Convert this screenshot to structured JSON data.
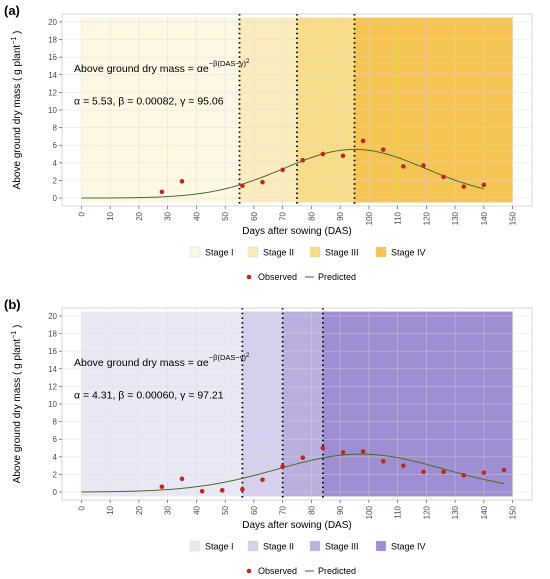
{
  "chart_data": [
    {
      "type": "scatter",
      "panel_label": "(a)",
      "xlabel": "Days after sowing (DAS)",
      "ylabel": "Above ground dry mass ( g plant",
      "ylabel_sup": "−1",
      "ylabel_close": " )",
      "xlim": [
        0,
        150
      ],
      "ylim": [
        0,
        20
      ],
      "x_ticks": [
        0,
        10,
        20,
        30,
        40,
        50,
        60,
        70,
        80,
        90,
        100,
        110,
        120,
        130,
        140,
        150
      ],
      "y_ticks": [
        0,
        2,
        4,
        6,
        8,
        10,
        12,
        14,
        16,
        18,
        20
      ],
      "grid": true,
      "equation": {
        "lhs": "Above ground dry mass = αe",
        "exponent": "−β(DAS−γ)",
        "exponent_sup": "2",
        "params": "α = 5.53, β =  0.00082, γ = 95.06"
      },
      "model": {
        "alpha": 5.53,
        "beta": 0.00082,
        "gamma": 95.06
      },
      "stages": [
        {
          "name": "Stage I",
          "from": 0,
          "to": 55,
          "color": "#fdf7e3"
        },
        {
          "name": "Stage II",
          "from": 55,
          "to": 75,
          "color": "#fbecc0"
        },
        {
          "name": "Stage III",
          "from": 75,
          "to": 95,
          "color": "#f8dc8a"
        },
        {
          "name": "Stage IV",
          "from": 95,
          "to": 150,
          "color": "#f5c553"
        }
      ],
      "stage_boundaries": [
        55,
        75,
        95
      ],
      "observed": {
        "name": "Observed",
        "color": "#c0271f",
        "x": [
          28,
          35,
          56,
          63,
          70,
          77,
          84,
          91,
          98,
          105,
          112,
          119,
          126,
          133,
          140
        ],
        "y": [
          0.7,
          1.9,
          1.4,
          1.8,
          3.2,
          4.3,
          5.0,
          4.8,
          6.5,
          5.5,
          3.6,
          3.7,
          2.4,
          1.3,
          1.5
        ]
      },
      "predicted": {
        "name": "Predicted",
        "color": "#4a6b2f",
        "x_range": [
          0,
          140
        ]
      },
      "legend": {
        "stage_labels": [
          "Stage I",
          "Stage II",
          "Stage III",
          "Stage IV"
        ],
        "observed_label": "Observed",
        "predicted_label": "Predicted"
      }
    },
    {
      "type": "scatter",
      "panel_label": "(b)",
      "xlabel": "Days after sowing (DAS)",
      "ylabel": "Above ground dry mass ( g plant",
      "ylabel_sup": "−1",
      "ylabel_close": " )",
      "xlim": [
        0,
        150
      ],
      "ylim": [
        0,
        20
      ],
      "x_ticks": [
        0,
        10,
        20,
        30,
        40,
        50,
        60,
        70,
        80,
        90,
        100,
        110,
        120,
        130,
        140,
        150
      ],
      "y_ticks": [
        0,
        2,
        4,
        6,
        8,
        10,
        12,
        14,
        16,
        18,
        20
      ],
      "grid": true,
      "equation": {
        "lhs": "Above ground dry mass = αe",
        "exponent": "−β(DAS−γ)",
        "exponent_sup": "2",
        "params": "α = 4.31, β =  0.00060, γ = 97.21"
      },
      "model": {
        "alpha": 4.31,
        "beta": 0.0006,
        "gamma": 97.21
      },
      "stages": [
        {
          "name": "Stage I",
          "from": 0,
          "to": 56,
          "color": "#ebe8f5"
        },
        {
          "name": "Stage II",
          "from": 56,
          "to": 70,
          "color": "#d6d0ec"
        },
        {
          "name": "Stage III",
          "from": 70,
          "to": 84,
          "color": "#baafdf"
        },
        {
          "name": "Stage IV",
          "from": 84,
          "to": 150,
          "color": "#9f8fd2"
        }
      ],
      "stage_boundaries": [
        56,
        70,
        84
      ],
      "observed": {
        "name": "Observed",
        "color": "#c0271f",
        "x": [
          28,
          35,
          42,
          49,
          56,
          63,
          70,
          77,
          84,
          91,
          98,
          105,
          112,
          119,
          126,
          133,
          140,
          147
        ],
        "y": [
          0.6,
          1.5,
          0.1,
          0.2,
          0.3,
          1.4,
          2.9,
          3.9,
          5.0,
          4.5,
          4.6,
          3.5,
          3.0,
          2.3,
          2.3,
          1.9,
          2.2,
          2.5
        ]
      },
      "predicted": {
        "name": "Predicted",
        "color": "#4a6b2f",
        "x_range": [
          0,
          147
        ]
      },
      "legend": {
        "stage_labels": [
          "Stage I",
          "Stage II",
          "Stage III",
          "Stage IV"
        ],
        "observed_label": "Observed",
        "predicted_label": "Predicted"
      }
    }
  ]
}
